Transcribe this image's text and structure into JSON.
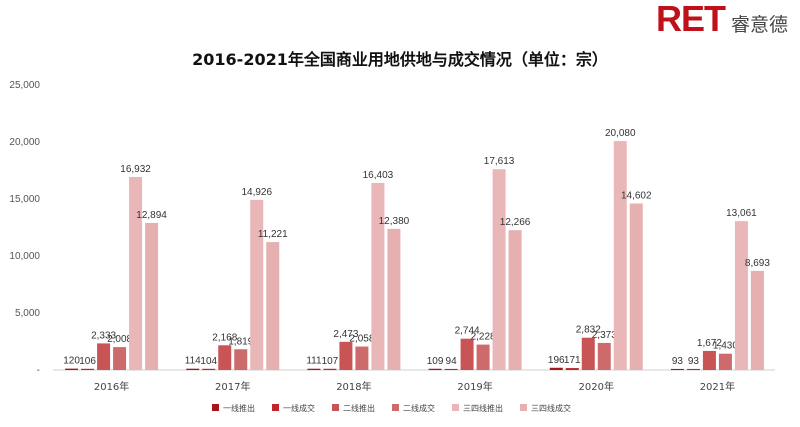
{
  "brand": {
    "mark": "RET",
    "name": "睿意德",
    "color": "#c0101a"
  },
  "chart_data": {
    "type": "bar",
    "title": "2016-2021年全国商业用地供地与成交情况（单位：宗）",
    "categories": [
      "2016年",
      "2017年",
      "2018年",
      "2019年",
      "2020年",
      "2021年"
    ],
    "series": [
      {
        "name": "一线推出",
        "color": "#a4161a",
        "values": [
          120,
          114,
          111,
          109,
          196,
          93
        ]
      },
      {
        "name": "一线成交",
        "color": "#c0272d",
        "values": [
          106,
          104,
          107,
          94,
          171,
          93
        ]
      },
      {
        "name": "二线推出",
        "color": "#c95455",
        "values": [
          2333,
          2168,
          2473,
          2744,
          2832,
          1672
        ]
      },
      {
        "name": "二线成交",
        "color": "#cd6a6b",
        "values": [
          2008,
          1819,
          2058,
          2228,
          2373,
          1430
        ]
      },
      {
        "name": "三四线推出",
        "color": "#eab7b8",
        "values": [
          16932,
          14926,
          16403,
          17613,
          20080,
          13061
        ]
      },
      {
        "name": "三四线成交",
        "color": "#e6b0b1",
        "values": [
          12894,
          11221,
          12380,
          12266,
          14602,
          8693
        ]
      }
    ],
    "data_labels": [
      [
        "120",
        "106",
        "2,333",
        "2,008",
        "16,932",
        "12,894"
      ],
      [
        "114",
        "104",
        "2,168",
        "1,819",
        "14,926",
        "11,221"
      ],
      [
        "111",
        "107",
        "2,473",
        "2,058",
        "16,403",
        "12,380"
      ],
      [
        "109",
        "94",
        "2,744",
        "2,228",
        "17,613",
        "12,266"
      ],
      [
        "196",
        "171",
        "2,832",
        "2,373",
        "20,080",
        "14,602"
      ],
      [
        "93",
        "93",
        "1,672",
        "1,430",
        "13,061",
        "8,693"
      ]
    ],
    "ylim": [
      0,
      25000
    ],
    "yticks": [
      0,
      5000,
      10000,
      15000,
      20000,
      25000
    ],
    "ytick_labels": [
      "-",
      "5,000",
      "10,000",
      "15,000",
      "20,000",
      "25,000"
    ],
    "grid": false,
    "legend": "bottom",
    "xlabel": "",
    "ylabel": ""
  }
}
